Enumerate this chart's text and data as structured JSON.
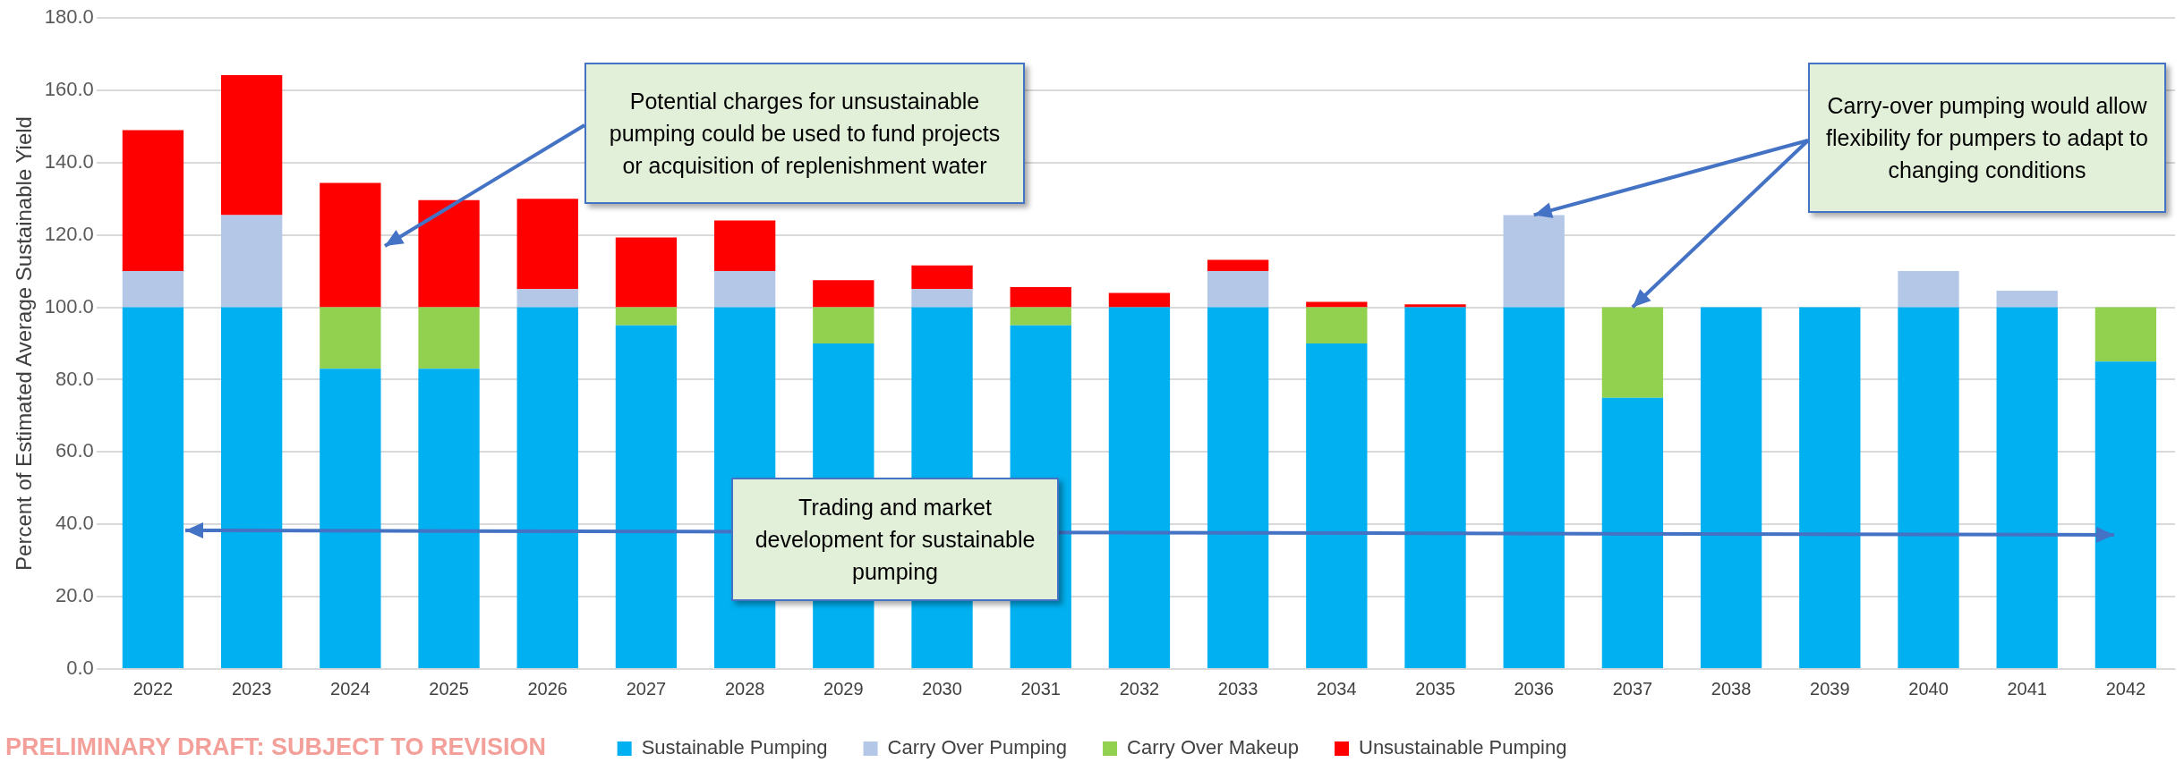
{
  "chart_data": {
    "type": "bar",
    "stacked": true,
    "categories": [
      "2022",
      "2023",
      "2024",
      "2025",
      "2026",
      "2027",
      "2028",
      "2029",
      "2030",
      "2031",
      "2032",
      "2033",
      "2034",
      "2035",
      "2036",
      "2037",
      "2038",
      "2039",
      "2040",
      "2041",
      "2042"
    ],
    "series": [
      {
        "name": "Sustainable Pumping",
        "color": "#00b0f0",
        "values": [
          100,
          100,
          83,
          83,
          100,
          95,
          100,
          90,
          100,
          95,
          100,
          100,
          90,
          100,
          100,
          75,
          100,
          100,
          100,
          100,
          85
        ]
      },
      {
        "name": "Carry Over Pumping",
        "color": "#b4c7e7",
        "values": [
          10,
          25.5,
          0,
          0,
          5,
          0,
          10,
          0,
          5,
          0,
          0,
          10,
          0,
          0,
          25.5,
          0,
          0,
          0,
          10,
          4.6,
          0
        ]
      },
      {
        "name": "Carry Over Makeup",
        "color": "#92d050",
        "values": [
          0,
          0,
          17,
          17,
          0,
          5,
          0,
          10,
          0,
          5,
          0,
          0,
          10,
          0,
          0,
          25,
          0,
          0,
          0,
          0,
          15
        ]
      },
      {
        "name": "Unsustainable Pumping",
        "color": "#ff0000",
        "values": [
          39,
          38.7,
          34.4,
          29.6,
          25,
          19.3,
          14,
          7.5,
          6.6,
          5.6,
          4,
          3.1,
          1.5,
          0.8,
          0,
          0,
          0,
          0,
          0,
          0,
          0
        ]
      }
    ],
    "ylabel": "Percent of Estimated Average Sustainable Yield",
    "ylim": [
      0,
      180
    ],
    "yticks": [
      {
        "value": 0,
        "label": "0.0"
      },
      {
        "value": 20,
        "label": "20.0"
      },
      {
        "value": 40,
        "label": "40.0"
      },
      {
        "value": 60,
        "label": "60.0"
      },
      {
        "value": 80,
        "label": "80.0"
      },
      {
        "value": 100,
        "label": "100.0"
      },
      {
        "value": 120,
        "label": "120.0"
      },
      {
        "value": 140,
        "label": "140.0"
      },
      {
        "value": 160,
        "label": "160.0"
      },
      {
        "value": 180,
        "label": "180.0"
      }
    ],
    "grid": "y",
    "legend": "bottom",
    "annotations": [
      "Potential charges for unsustainable pumping could be used to fund projects or acquisition of replenishment water",
      {
        "text": "Carry-over pumping  would allow flexibility for pumpers to adapt to changing conditions",
        "x": "2036",
        "y": 125.5
      },
      "Trading and market development for sustainable pumping",
      "PRELIMINARY DRAFT: SUBJECT TO REVISION"
    ]
  }
}
